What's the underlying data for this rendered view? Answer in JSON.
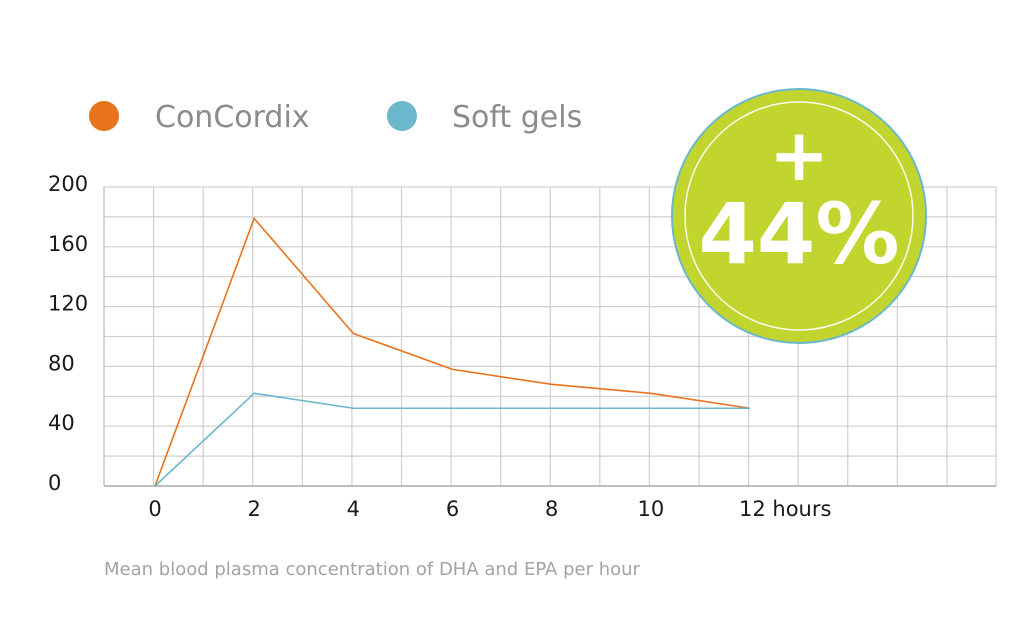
{
  "chart_data": {
    "type": "line",
    "x": [
      0,
      2,
      4,
      6,
      8,
      10,
      12
    ],
    "x_tick_labels": [
      "0",
      "2",
      "4",
      "6",
      "8",
      "10",
      "12 hours"
    ],
    "y_tick_labels": [
      "0",
      "40",
      "80",
      "120",
      "160",
      "200"
    ],
    "ylim": [
      0,
      200
    ],
    "grid": true,
    "legend_position": "top-left",
    "series": [
      {
        "name": "ConCordix",
        "color": "#e8731d",
        "values": [
          0,
          179,
          102,
          78,
          68,
          62,
          52
        ]
      },
      {
        "name": "Soft gels",
        "color": "#6bb8cc",
        "values": [
          0,
          62,
          52,
          52,
          52,
          52,
          52
        ]
      }
    ],
    "caption": "Mean blood plasma concentration of DHA and EPA per hour"
  },
  "badge": {
    "sign": "+",
    "value": "44%",
    "color": "#c2d52f",
    "border_color": "#6bb8cc"
  }
}
